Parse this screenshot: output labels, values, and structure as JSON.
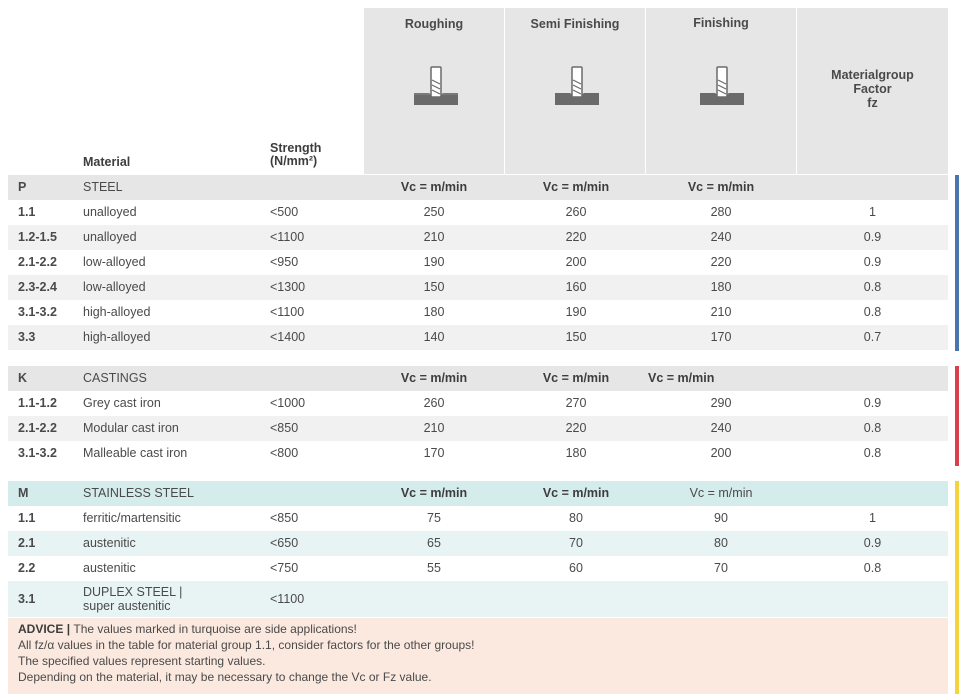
{
  "header": {
    "material_label": "Material",
    "strength_label_line1": "Strength",
    "strength_label_line2": "(N/mm²)",
    "roughing": "Roughing",
    "semi_finishing": "Semi Finishing",
    "finishing": "Finishing",
    "fz_line1": "Materialgroup",
    "fz_line2": "Factor",
    "fz_line3": "fz"
  },
  "colors": {
    "steel_bar": "#4a76b0",
    "castings_bar": "#d9404a",
    "stainless_bar": "#f5d33d"
  },
  "sections": [
    {
      "code": "P",
      "name": "STEEL",
      "vc_r": "Vc = m/min",
      "vc_s": "Vc = m/min",
      "vc_f": "Vc = m/min",
      "rows": [
        {
          "grp": "1.1",
          "mat": "unalloyed",
          "str": "<500",
          "r": "250",
          "s": "260",
          "f": "280",
          "fz": "1"
        },
        {
          "grp": "1.2-1.5",
          "mat": "unalloyed",
          "str": "<1100",
          "r": "210",
          "s": "220",
          "f": "240",
          "fz": "0.9"
        },
        {
          "grp": "2.1-2.2",
          "mat": "low-alloyed",
          "str": "<950",
          "r": "190",
          "s": "200",
          "f": "220",
          "fz": "0.9"
        },
        {
          "grp": "2.3-2.4",
          "mat": "low-alloyed",
          "str": "<1300",
          "r": "150",
          "s": "160",
          "f": "180",
          "fz": "0.8"
        },
        {
          "grp": "3.1-3.2",
          "mat": "high-alloyed",
          "str": "<1100",
          "r": "180",
          "s": "190",
          "f": "210",
          "fz": "0.8"
        },
        {
          "grp": "3.3",
          "mat": "high-alloyed",
          "str": "<1400",
          "r": "140",
          "s": "150",
          "f": "170",
          "fz": "0.7"
        }
      ]
    },
    {
      "code": "K",
      "name": "CASTINGS",
      "vc_r": "Vc = m/min",
      "vc_s": "Vc = m/min",
      "vc_f": "Vc = m/min",
      "rows": [
        {
          "grp": "1.1-1.2",
          "mat": "Grey cast iron",
          "str": "<1000",
          "r": "260",
          "s": "270",
          "f": "290",
          "fz": "0.9"
        },
        {
          "grp": "2.1-2.2",
          "mat": "Modular cast iron",
          "str": "<850",
          "r": "210",
          "s": "220",
          "f": "240",
          "fz": "0.8"
        },
        {
          "grp": "3.1-3.2",
          "mat": "Malleable cast iron",
          "str": "<800",
          "r": "170",
          "s": "180",
          "f": "200",
          "fz": "0.8"
        }
      ]
    },
    {
      "code": "M",
      "name": "STAINLESS STEEL",
      "vc_r": "Vc = m/min",
      "vc_s": "Vc = m/min",
      "vc_f": "Vc = m/min",
      "rows": [
        {
          "grp": "1.1",
          "mat": "ferritic/martensitic",
          "str": "<850",
          "r": "75",
          "s": "80",
          "f": "90",
          "fz": "1"
        },
        {
          "grp": "2.1",
          "mat": "austenitic",
          "str": "<650",
          "r": "65",
          "s": "70",
          "f": "80",
          "fz": "0.9"
        },
        {
          "grp": "2.2",
          "mat": "austenitic",
          "str": "<750",
          "r": "55",
          "s": "60",
          "f": "70",
          "fz": "0.8"
        },
        {
          "grp": "3.1",
          "mat_line1": "DUPLEX STEEL |",
          "mat_line2": "super austenitic",
          "str": "<1100"
        }
      ]
    }
  ],
  "advice": {
    "label": "ADVICE",
    "line1": "The values marked in turquoise are side applications!",
    "line2": "All fz/α values in the table for material group 1.1, consider factors for the other groups!",
    "line3": "The specified values represent starting values.",
    "line4": "Depending on the material, it may be necessary to change the Vc or Fz value."
  }
}
